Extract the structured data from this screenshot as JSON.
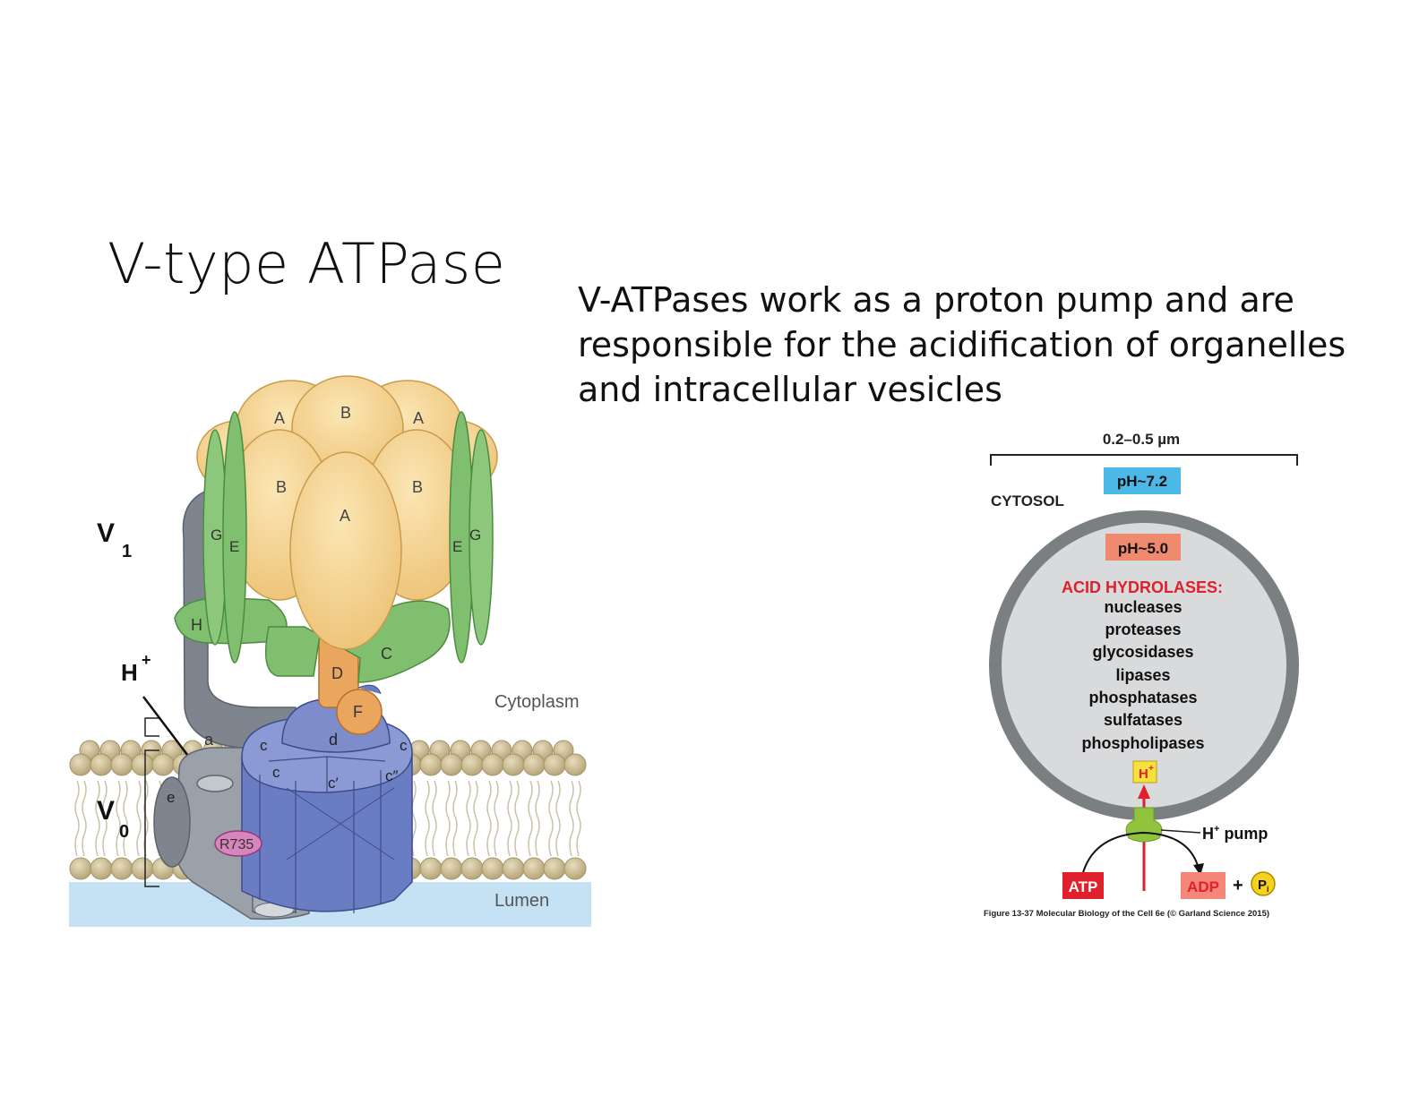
{
  "slide": {
    "title": "V-type ATPase",
    "body_lines": [
      "V-ATPases work as a proton pump and are",
      "responsible for the acidification of organelles",
      "and intracellular vesicles"
    ]
  },
  "left_figure": {
    "labels": {
      "V1_main": "V",
      "V1_sub": "1",
      "V0_main": "V",
      "V0_sub": "0",
      "H_main": "H",
      "H_sup": "+",
      "cytoplasm": "Cytoplasm",
      "lumen": "Lumen",
      "residue": "R735"
    },
    "subunits": {
      "A": "A",
      "B": "B",
      "C": "C",
      "D": "D",
      "E": "E",
      "F": "F",
      "G": "G",
      "H": "H",
      "a": "a",
      "d": "d",
      "e": "e",
      "c": "c",
      "c_prime": "c′",
      "c_double_prime": "c″"
    },
    "colors": {
      "A_B_yellow": "#f5d58f",
      "green": "#7fbf6f",
      "orange": "#eba65e",
      "blue": "#6f7fc0",
      "gray": "#8a9099",
      "membrane": "#cdbf96",
      "lumen": "#bfe0f2",
      "pink": "#d97ab8"
    }
  },
  "right_figure": {
    "size_label": "0.2–0.5 µm",
    "cytosol": "CYTOSOL",
    "ph_outside": "pH~7.2",
    "ph_inside": "pH~5.0",
    "hydrolases_title": "ACID HYDROLASES:",
    "hydrolases": [
      "nucleases",
      "proteases",
      "glycosidases",
      "lipases",
      "phosphatases",
      "sulfatases",
      "phospholipases"
    ],
    "h_plus": "H",
    "h_plus_sup": "+",
    "pump_label": "H",
    "pump_label_rest": " pump",
    "atp": "ATP",
    "adp": "ADP",
    "plus": "+",
    "pi": "P",
    "pi_sub": "i",
    "caption": "Figure 13-37 Molecular Biology of the Cell 6e (© Garland Science 2015)",
    "colors": {
      "ph_outside_bg": "#4cb8e8",
      "ph_inside_bg": "#f08a6e",
      "hydrolase_title": "#e0202a",
      "ring": "#7a7f82",
      "lumen_fill": "#d9dadc",
      "pump": "#8fc43c",
      "atp_bg": "#e0202a",
      "adp_bg": "#f4877a",
      "h_box": "#f5e23c",
      "pi_circle": "#f5d21c"
    }
  }
}
